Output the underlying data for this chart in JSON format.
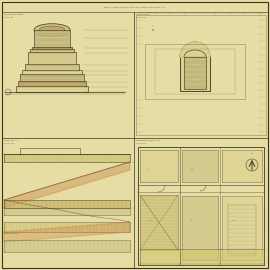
{
  "bg_color": "#e8e0a8",
  "paper_color": "#e5dda0",
  "line_color": "#3a3520",
  "dim_color": "#5a5040",
  "orange_color": "#c8783a",
  "tan_color": "#c8b060",
  "fill_light": "#ddd090",
  "fill_mid": "#ccc080",
  "fill_dark": "#b8a060",
  "cross_hatch": "#a09050",
  "border_lw": 0.6,
  "inner_lw": 0.4,
  "thin_lw": 0.3
}
